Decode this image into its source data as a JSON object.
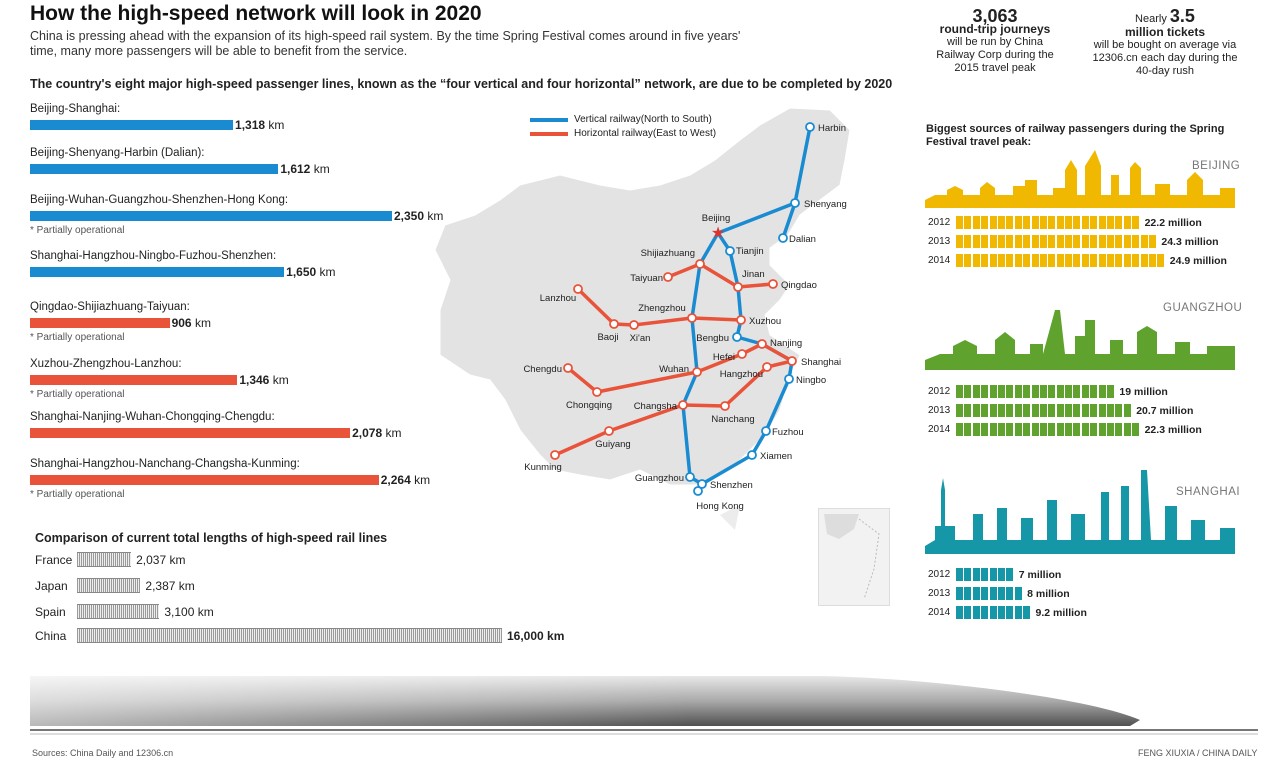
{
  "title": "How the high-speed network will look in 2020",
  "intro": "China is pressing ahead with the expansion of its high-speed rail system. By the time Spring Festival comes around in five years' time, many more passengers will be able to benefit from the service.",
  "subtitle": "The country's eight major high-speed passenger lines, known as the “four vertical and four horizontal” network, are due to be completed by 2020",
  "colors": {
    "vertical": "#1a8bd1",
    "horizontal": "#e8533a",
    "beijing": "#f0b800",
    "guangzhou": "#5fa32e",
    "shanghai": "#1597a8"
  },
  "stats": [
    {
      "prefix": "",
      "number": "3,063",
      "headline": "round-trip journeys",
      "text": "will be run by China Railway Corp during the 2015 travel peak"
    },
    {
      "prefix": "Nearly",
      "number": "3.5",
      "headline": "million tickets",
      "text": "will be bought on average via 12306.cn each day during the 40-day rush"
    }
  ],
  "legend": {
    "vertical": "Vertical railway(North to South)",
    "horizontal": "Horizontal railway(East to West)"
  },
  "chart_data": [
    {
      "type": "bar",
      "title": "",
      "categories": [
        "Beijing-Shanghai:",
        "Beijing-Shenyang-Harbin (Dalian):",
        "Beijing-Wuhan-Guangzhou-Shenzhen-Hong Kong:",
        "Shanghai-Hangzhou-Ningbo-Fuzhou-Shenzhen:",
        "Qingdao-Shijiazhuang-Taiyuan:",
        "Xuzhou-Zhengzhou-Lanzhou:",
        "Shanghai-Nanjing-Wuhan-Chongqing-Chengdu:",
        "Shanghai-Hangzhou-Nanchang-Changsha-Kunming:"
      ],
      "values": [
        1318,
        1612,
        2350,
        1650,
        906,
        1346,
        2078,
        2264
      ],
      "labels": [
        "1,318",
        "1,612",
        "2,350",
        "1,650",
        "906",
        "1,346",
        "2,078",
        "2,264"
      ],
      "unit": "km",
      "kind": [
        "vertical",
        "vertical",
        "vertical",
        "vertical",
        "horizontal",
        "horizontal",
        "horizontal",
        "horizontal"
      ],
      "notes": [
        "",
        "",
        "* Partially operational",
        "",
        "* Partially operational",
        "* Partially operational",
        "",
        "* Partially operational"
      ]
    },
    {
      "type": "bar",
      "title": "Comparison of current total lengths of high-speed rail lines",
      "categories": [
        "France",
        "Japan",
        "Spain",
        "China"
      ],
      "values": [
        2037,
        2387,
        3100,
        16000
      ],
      "labels": [
        "2,037 km",
        "2,387 km",
        "3,100 km",
        "16,000 km"
      ]
    },
    {
      "type": "bar",
      "title": "Biggest sources of railway passengers during the Spring Festival travel peak:",
      "categories": [
        "2012",
        "2013",
        "2014"
      ],
      "unit": "million",
      "series": [
        {
          "name": "BEIJING",
          "values": [
            22.2,
            24.3,
            24.9
          ],
          "labels": [
            "22.2 million",
            "24.3 million",
            "24.9 million"
          ]
        },
        {
          "name": "GUANGZHOU",
          "values": [
            19,
            20.7,
            22.3
          ],
          "labels": [
            "19 million",
            "20.7 million",
            "22.3 million"
          ]
        },
        {
          "name": "SHANGHAI",
          "values": [
            7,
            8,
            9.2
          ],
          "labels": [
            "7 million",
            "8 million",
            "9.2 million"
          ]
        }
      ]
    }
  ],
  "map": {
    "cities": [
      "Harbin",
      "Shenyang",
      "Dalian",
      "Beijing",
      "Tianjin",
      "Shijiazhuang",
      "Taiyuan",
      "Jinan",
      "Qingdao",
      "Lanzhou",
      "Zhengzhou",
      "Xi'an",
      "Baoji",
      "Xuzhou",
      "Bengbu",
      "Nanjing",
      "Hefei",
      "Shanghai",
      "Wuhan",
      "Hangzhou",
      "Ningbo",
      "Chengdu",
      "Chongqing",
      "Changsha",
      "Nanchang",
      "Fuzhou",
      "Guiyang",
      "Kunming",
      "Xiamen",
      "Guangzhou",
      "Shenzhen",
      "Hong Kong"
    ]
  },
  "footer": {
    "sources": "Sources: China Daily and 12306.cn",
    "credit": "FENG XIUXIA / CHINA DAILY"
  }
}
